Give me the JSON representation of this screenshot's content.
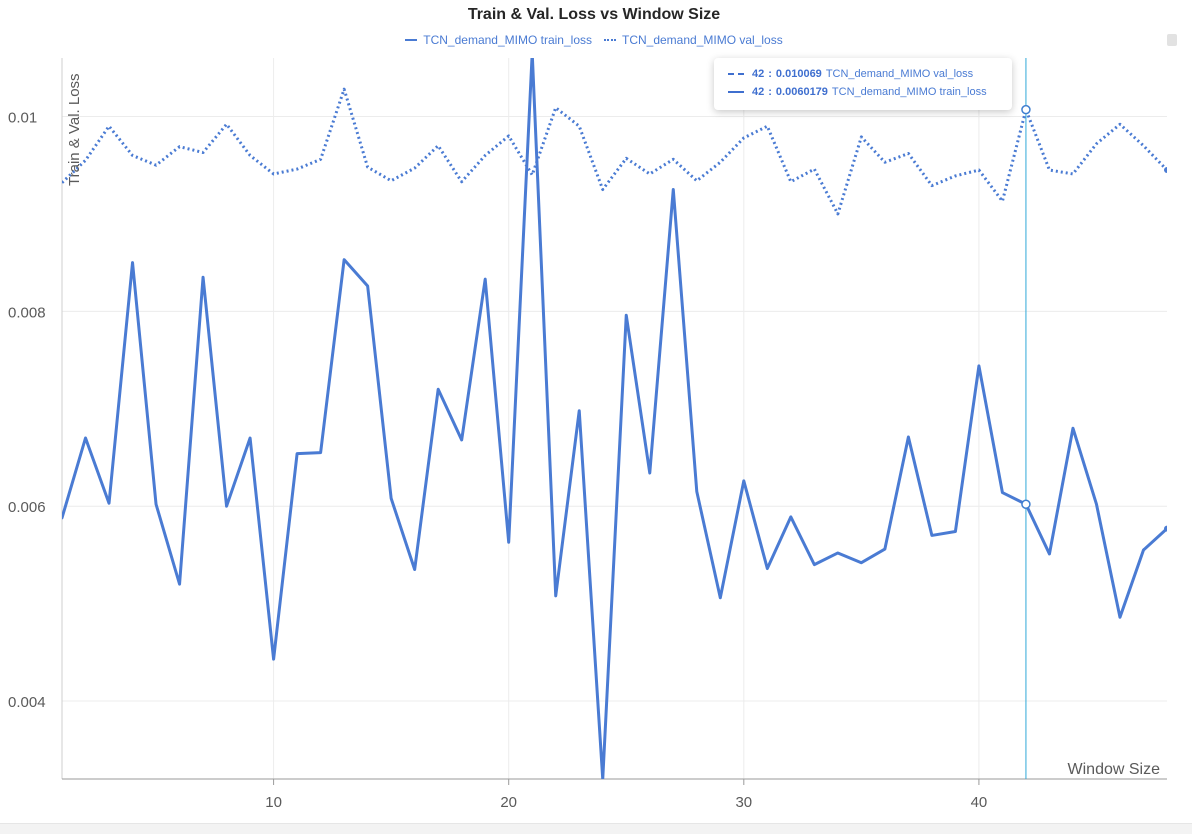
{
  "chart_data": {
    "type": "line",
    "title": "Train & Val. Loss vs Window Size",
    "xlabel": "Window Size",
    "ylabel": "Train & Val. Loss",
    "xlim": [
      1,
      48
    ],
    "ylim": [
      0.0032,
      0.0106
    ],
    "xticks": [
      10,
      20,
      30,
      40
    ],
    "yticks": [
      0.004,
      0.006,
      0.008,
      0.01
    ],
    "grid": true,
    "legend": "top-center",
    "x": [
      1,
      2,
      3,
      4,
      5,
      6,
      7,
      8,
      9,
      10,
      11,
      12,
      13,
      14,
      15,
      16,
      17,
      18,
      19,
      20,
      21,
      22,
      23,
      24,
      25,
      26,
      27,
      28,
      29,
      30,
      31,
      32,
      33,
      34,
      35,
      36,
      37,
      38,
      39,
      40,
      41,
      42,
      43,
      44,
      45,
      46,
      47,
      48
    ],
    "series": [
      {
        "name": "TCN_demand_MIMO train_loss",
        "style": "solid",
        "color": "#4a7bd3",
        "values": [
          0.00588,
          0.0067,
          0.00603,
          0.0085,
          0.00602,
          0.0052,
          0.00835,
          0.006,
          0.0067,
          0.00443,
          0.00654,
          0.00655,
          0.00853,
          0.00826,
          0.00608,
          0.00535,
          0.0072,
          0.00668,
          0.00833,
          0.00563,
          0.01065,
          0.00508,
          0.00698,
          0.0032,
          0.00796,
          0.00634,
          0.00925,
          0.00615,
          0.00506,
          0.00626,
          0.00536,
          0.00589,
          0.0054,
          0.00552,
          0.00542,
          0.00556,
          0.00671,
          0.0057,
          0.00574,
          0.00744,
          0.00614,
          0.00602,
          0.00551,
          0.0068,
          0.00602,
          0.00486,
          0.00555,
          0.00577
        ]
      },
      {
        "name": "TCN_demand_MIMO val_loss",
        "style": "dashed",
        "color": "#4a7bd3",
        "values": [
          0.00932,
          0.00955,
          0.0099,
          0.0096,
          0.0095,
          0.00969,
          0.00963,
          0.00992,
          0.0096,
          0.00941,
          0.00946,
          0.00956,
          0.01028,
          0.00948,
          0.00934,
          0.00947,
          0.0097,
          0.00933,
          0.0096,
          0.0098,
          0.0094,
          0.01009,
          0.0099,
          0.00925,
          0.00957,
          0.00941,
          0.00956,
          0.00934,
          0.00953,
          0.00978,
          0.0099,
          0.00933,
          0.00946,
          0.009,
          0.00979,
          0.00953,
          0.00962,
          0.00929,
          0.00939,
          0.00945,
          0.00913,
          0.01007,
          0.00945,
          0.00941,
          0.00972,
          0.00992,
          0.0097,
          0.00945
        ]
      }
    ],
    "hover": {
      "x": 42,
      "x_label": "42",
      "rows": [
        {
          "value": "0.010069",
          "name": "TCN_demand_MIMO val_loss",
          "style": "dashed"
        },
        {
          "value": "0.0060179",
          "name": "TCN_demand_MIMO train_loss",
          "style": "solid"
        }
      ]
    }
  }
}
